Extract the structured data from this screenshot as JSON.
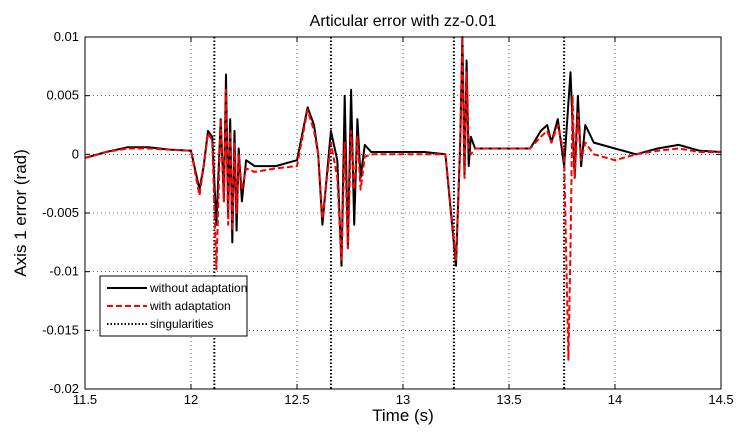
{
  "chart_data": {
    "type": "line",
    "title": "Articular error with zz-0.01",
    "xlabel": "Time (s)",
    "ylabel": "Axis 1 error (rad)",
    "xlim": [
      11.5,
      14.5
    ],
    "ylim": [
      -0.02,
      0.01
    ],
    "xticks": [
      11.5,
      12,
      12.5,
      13,
      13.5,
      14,
      14.5
    ],
    "xtick_labels": [
      "11.5",
      "12",
      "12.5",
      "13",
      "13.5",
      "14",
      "14.5"
    ],
    "yticks": [
      0.01,
      0.005,
      0,
      -0.005,
      -0.01,
      -0.015,
      -0.02
    ],
    "ytick_labels": [
      "0.01",
      "0.005",
      "0",
      "-0.005",
      "-0.01",
      "-0.015",
      "-0.02"
    ],
    "grid": true,
    "legend_position": "bottom-left",
    "series": [
      {
        "name": "without adaptation",
        "color": "#000000",
        "style": "solid",
        "x": [
          11.5,
          11.6,
          11.7,
          11.8,
          11.9,
          12.0,
          12.04,
          12.06,
          12.08,
          12.1,
          12.12,
          12.14,
          12.155,
          12.165,
          12.175,
          12.185,
          12.195,
          12.205,
          12.215,
          12.225,
          12.24,
          12.26,
          12.3,
          12.4,
          12.5,
          12.55,
          12.58,
          12.6,
          12.62,
          12.66,
          12.69,
          12.71,
          12.725,
          12.74,
          12.755,
          12.77,
          12.785,
          12.8,
          12.82,
          12.85,
          12.9,
          13.0,
          13.1,
          13.2,
          13.25,
          13.27,
          13.28,
          13.29,
          13.3,
          13.31,
          13.32,
          13.34,
          13.4,
          13.5,
          13.6,
          13.65,
          13.68,
          13.7,
          13.73,
          13.76,
          13.79,
          13.81,
          13.825,
          13.84,
          13.86,
          13.9,
          14.0,
          14.1,
          14.2,
          14.3,
          14.4,
          14.5
        ],
        "values": [
          -0.0003,
          0.0002,
          0.0006,
          0.0006,
          0.0004,
          0.0003,
          -0.003,
          -0.001,
          0.002,
          0.0015,
          -0.006,
          0.003,
          -0.004,
          0.0068,
          -0.005,
          0.003,
          -0.0075,
          0.002,
          -0.0065,
          0.0005,
          -0.004,
          -0.0005,
          -0.001,
          -0.001,
          -0.0005,
          0.004,
          0.0025,
          0.0,
          -0.006,
          0.002,
          -0.0005,
          -0.0095,
          0.005,
          -0.008,
          0.0055,
          -0.006,
          0.003,
          -0.002,
          0.0008,
          0.0002,
          0.0002,
          0.0002,
          0.0002,
          0.0,
          -0.0095,
          0.001,
          0.01,
          -0.002,
          0.008,
          -0.001,
          0.0015,
          0.0005,
          0.0005,
          0.0005,
          0.0005,
          0.002,
          0.0025,
          0.001,
          0.003,
          -0.001,
          0.007,
          -0.002,
          0.005,
          -0.001,
          0.0025,
          0.001,
          0.0005,
          0.0,
          0.0005,
          0.0008,
          0.0003,
          0.0002
        ]
      },
      {
        "name": "with adaptation",
        "color": "#ff0000",
        "style": "dashed",
        "x": [
          11.5,
          11.6,
          11.7,
          11.8,
          11.9,
          12.0,
          12.04,
          12.06,
          12.08,
          12.1,
          12.12,
          12.14,
          12.155,
          12.165,
          12.175,
          12.185,
          12.195,
          12.205,
          12.215,
          12.225,
          12.24,
          12.26,
          12.3,
          12.4,
          12.5,
          12.55,
          12.58,
          12.6,
          12.62,
          12.66,
          12.69,
          12.71,
          12.725,
          12.74,
          12.755,
          12.77,
          12.785,
          12.8,
          12.82,
          12.85,
          12.9,
          13.0,
          13.1,
          13.2,
          13.25,
          13.27,
          13.28,
          13.29,
          13.3,
          13.31,
          13.32,
          13.34,
          13.4,
          13.5,
          13.6,
          13.65,
          13.68,
          13.7,
          13.73,
          13.76,
          13.78,
          13.79,
          13.8,
          13.81,
          13.825,
          13.84,
          13.86,
          13.9,
          14.0,
          14.1,
          14.2,
          14.3,
          14.4,
          14.5
        ],
        "values": [
          -0.0003,
          0.0002,
          0.0005,
          0.0005,
          0.0004,
          0.0003,
          -0.0035,
          -0.001,
          0.0018,
          0.0012,
          -0.0098,
          0.003,
          -0.004,
          0.0055,
          -0.006,
          0.002,
          -0.0065,
          0.001,
          -0.005,
          0.0,
          -0.003,
          -0.0012,
          -0.0015,
          -0.0012,
          -0.001,
          0.0038,
          0.002,
          0.0,
          -0.0055,
          0.001,
          -0.002,
          -0.009,
          0.001,
          -0.008,
          0.002,
          -0.003,
          0.0015,
          -0.003,
          -0.0002,
          0.0,
          0.0,
          0.0,
          0.0,
          0.0,
          -0.009,
          0.0005,
          0.01,
          -0.002,
          0.007,
          0.0005,
          0.0,
          0.0005,
          0.0005,
          0.0005,
          0.0005,
          0.0015,
          0.002,
          0.001,
          0.0025,
          0.0,
          -0.0175,
          -0.008,
          0.005,
          -0.002,
          0.0035,
          -0.0005,
          0.001,
          0.0,
          -0.0005,
          0.0,
          0.0003,
          0.0005,
          0.0002,
          0.0002
        ]
      },
      {
        "name": "singularities",
        "color": "#000000",
        "style": "dotted",
        "x": [
          12.11,
          12.66,
          13.24,
          13.76
        ]
      }
    ]
  }
}
